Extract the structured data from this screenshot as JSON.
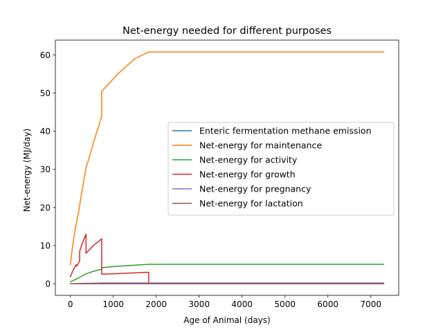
{
  "chart_data": {
    "type": "line",
    "title": "Net-energy needed for different purposes",
    "xlabel": "Age of Animal (days)",
    "ylabel": "Net-energy (MJ/day)",
    "xlim": [
      -350,
      7650
    ],
    "ylim": [
      -3.05,
      63.9
    ],
    "xticks": [
      0,
      1000,
      2000,
      3000,
      4000,
      5000,
      6000,
      7000
    ],
    "yticks": [
      0,
      10,
      20,
      30,
      40,
      50,
      60
    ],
    "grid": false,
    "legend_position": "center-right",
    "series": [
      {
        "name": "Enteric fermentation methane emission",
        "color": "#1f77b4",
        "points": [
          [
            0,
            0.0
          ],
          [
            7300,
            0.0
          ]
        ]
      },
      {
        "name": "Net-energy for maintenance",
        "color": "#ff7f0e",
        "points": [
          [
            0,
            5.0
          ],
          [
            30,
            8.0
          ],
          [
            60,
            10.5
          ],
          [
            100,
            13.5
          ],
          [
            150,
            16.5
          ],
          [
            200,
            19.5
          ],
          [
            280,
            25.0
          ],
          [
            365,
            30.5
          ],
          [
            450,
            33.5
          ],
          [
            550,
            37.5
          ],
          [
            650,
            41.0
          ],
          [
            729,
            43.8
          ],
          [
            730,
            50.5
          ],
          [
            900,
            52.5
          ],
          [
            1100,
            55.0
          ],
          [
            1300,
            57.0
          ],
          [
            1500,
            59.0
          ],
          [
            1825,
            60.8
          ],
          [
            7300,
            60.8
          ]
        ]
      },
      {
        "name": "Net-energy for activity",
        "color": "#2ca02c",
        "points": [
          [
            0,
            0.5
          ],
          [
            100,
            1.0
          ],
          [
            200,
            1.6
          ],
          [
            365,
            2.6
          ],
          [
            550,
            3.3
          ],
          [
            729,
            3.8
          ],
          [
            730,
            4.2
          ],
          [
            1000,
            4.5
          ],
          [
            1400,
            4.8
          ],
          [
            1825,
            5.1
          ],
          [
            7300,
            5.1
          ]
        ]
      },
      {
        "name": "Net-energy for growth",
        "color": "#d62728",
        "points": [
          [
            0,
            1.8
          ],
          [
            60,
            3.5
          ],
          [
            110,
            4.5
          ],
          [
            130,
            5.0
          ],
          [
            150,
            4.6
          ],
          [
            200,
            5.6
          ],
          [
            215,
            6.0
          ],
          [
            216,
            8.5
          ],
          [
            260,
            10.0
          ],
          [
            310,
            11.5
          ],
          [
            364,
            13.0
          ],
          [
            365,
            8.0
          ],
          [
            450,
            9.0
          ],
          [
            550,
            10.2
          ],
          [
            650,
            11.0
          ],
          [
            729,
            11.8
          ],
          [
            730,
            2.5
          ],
          [
            1000,
            2.6
          ],
          [
            1400,
            2.8
          ],
          [
            1824,
            3.0
          ],
          [
            1825,
            0.0
          ],
          [
            7300,
            0.0
          ]
        ]
      },
      {
        "name": "Net-energy for pregnancy",
        "color": "#9467bd",
        "points": [
          [
            0,
            0.0
          ],
          [
            730,
            0.2
          ],
          [
            7300,
            0.2
          ]
        ]
      },
      {
        "name": "Net-energy for lactation",
        "color": "#8c564b",
        "points": [
          [
            0,
            0.0
          ],
          [
            7300,
            0.0
          ]
        ]
      }
    ]
  }
}
